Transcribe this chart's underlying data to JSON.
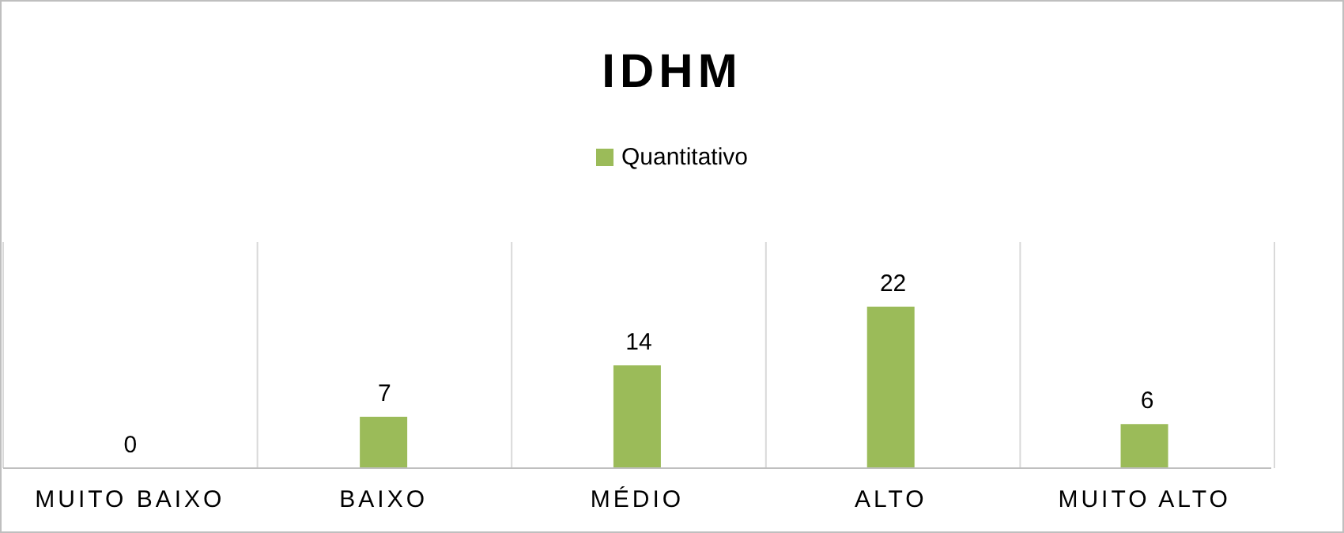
{
  "chart_data": {
    "type": "bar",
    "title": "IDHM",
    "categories": [
      "MUITO BAIXO",
      "BAIXO",
      "MÉDIO",
      "ALTO",
      "MUITO ALTO"
    ],
    "series": [
      {
        "name": "Quantitativo",
        "color": "#9bbb59",
        "values": [
          0,
          7,
          14,
          22,
          6
        ]
      }
    ],
    "data_labels": true,
    "grid": "x",
    "legend": "top"
  }
}
